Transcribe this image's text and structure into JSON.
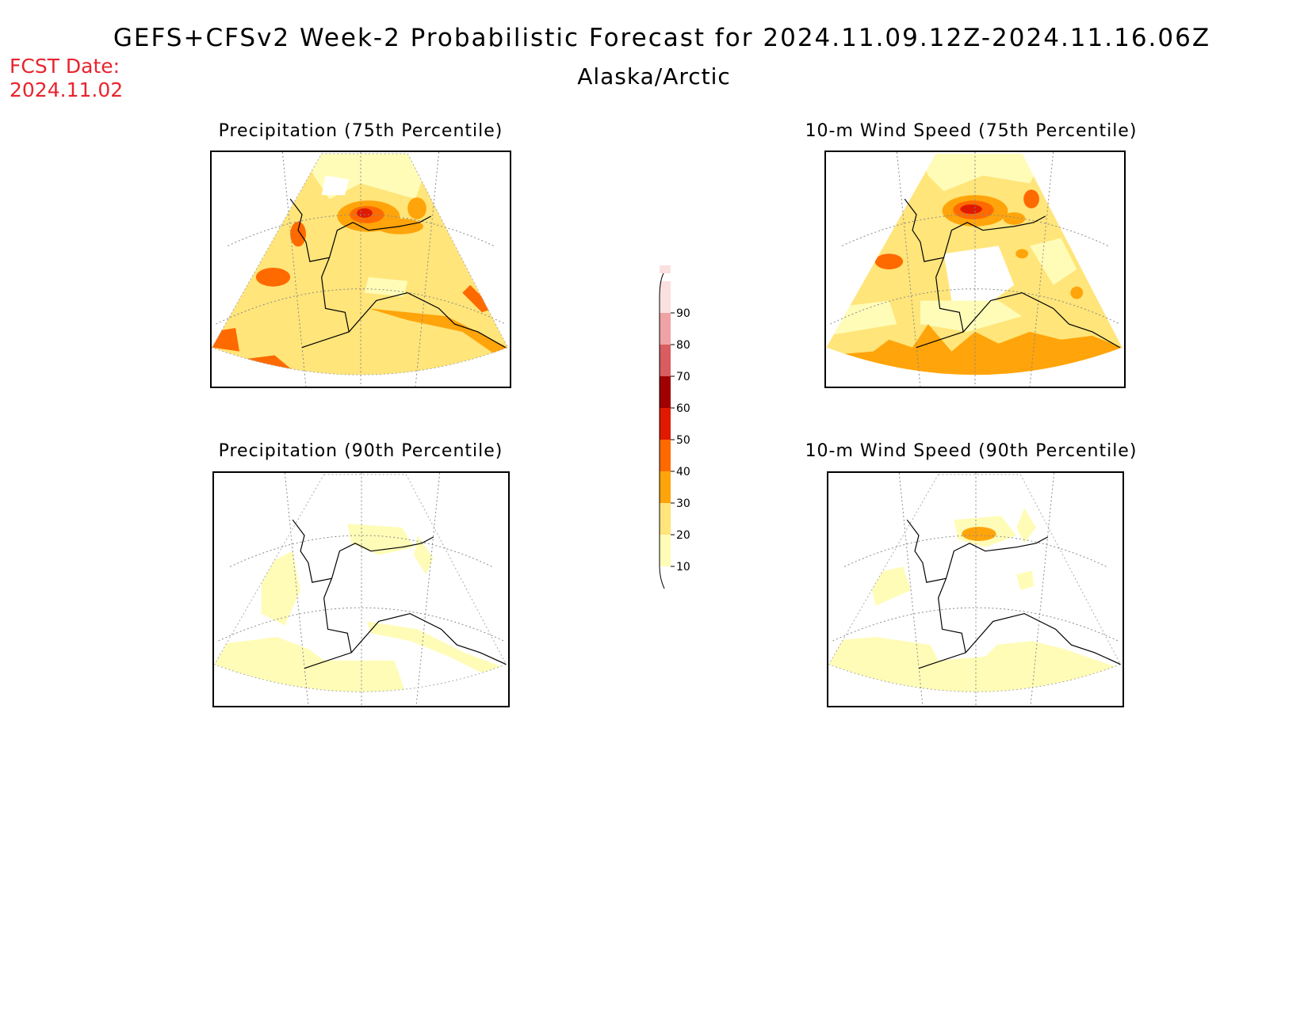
{
  "header": {
    "title": "GEFS+CFSv2 Week-2 Probabilistic Forecast for 2024.11.09.12Z-2024.11.16.06Z",
    "region": "Alaska/Arctic",
    "fcst_label": "FCST Date:",
    "fcst_value": "2024.11.02"
  },
  "panels": [
    {
      "id": "precip-75",
      "title": "Precipitation (75th Percentile)"
    },
    {
      "id": "wind-75",
      "title": "10-m Wind Speed (75th Percentile)"
    },
    {
      "id": "precip-90",
      "title": "Precipitation (90th Percentile)"
    },
    {
      "id": "wind-90",
      "title": "10-m Wind Speed (90th Percentile)"
    }
  ],
  "colorbar": {
    "levels": [
      "10",
      "20",
      "30",
      "40",
      "50",
      "60",
      "70",
      "80",
      "90"
    ],
    "colors": [
      "#fffcb8",
      "#ffe57a",
      "#ffa40a",
      "#ff6a00",
      "#e01a00",
      "#a00000",
      "#d85c60",
      "#f0a3a5",
      "#fbe0e0"
    ]
  }
}
